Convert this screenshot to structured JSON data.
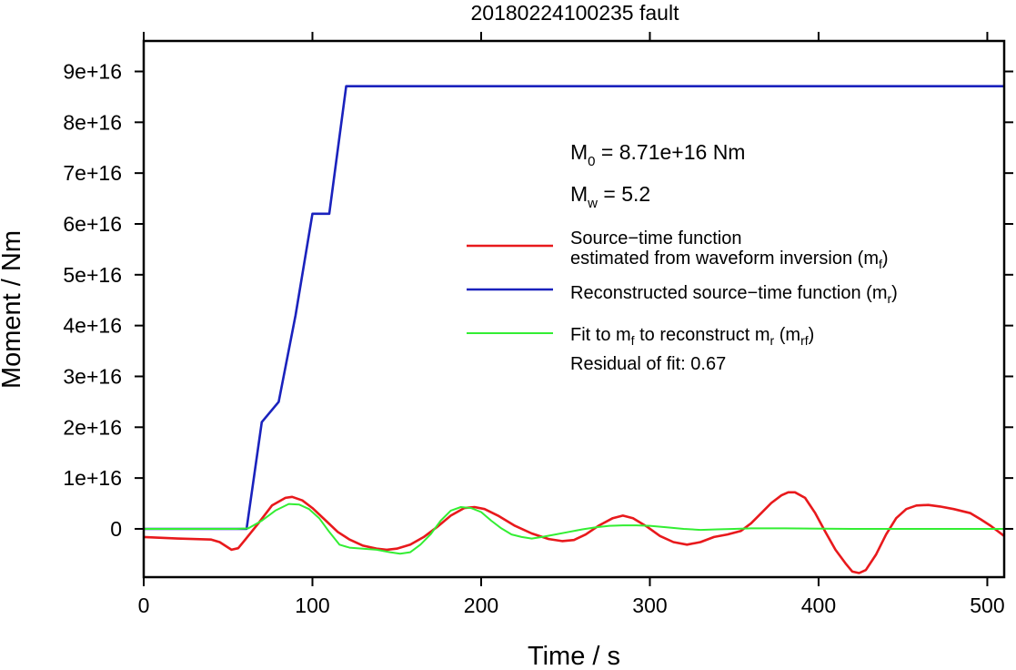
{
  "chart_data": {
    "type": "line",
    "title": "20180224100235 fault",
    "xlabel": "Time / s",
    "ylabel": "Moment / Nm",
    "xlim": [
      0,
      510
    ],
    "ylim": [
      -9500000000000000.0,
      9.6e+16
    ],
    "x_ticks": [
      0,
      100,
      200,
      300,
      400,
      500
    ],
    "x_tick_labels": [
      "0",
      "100",
      "200",
      "300",
      "400",
      "500"
    ],
    "y_ticks": [
      0,
      1e+16,
      2e+16,
      3e+16,
      4e+16,
      5e+16,
      6e+16,
      7e+16,
      8e+16,
      9e+16
    ],
    "y_tick_labels": [
      "0",
      "1e+16",
      "2e+16",
      "3e+16",
      "4e+16",
      "5e+16",
      "6e+16",
      "7e+16",
      "8e+16",
      "9e+16"
    ],
    "grid": false,
    "legend_placement": "right",
    "annotations": {
      "m0_sym": "M",
      "m0_sub": "0",
      "m0_value": " = 8.71e+16 Nm",
      "mw_sym": "M",
      "mw_sub": "w",
      "mw_value": " = 5.2",
      "residual": "Residual of fit: 0.67"
    },
    "legend": [
      {
        "color": "#e8191c",
        "lines": [
          "Source−time function",
          {
            "pre": "estimated from waveform inversion (m",
            "sub": "f",
            "post": ")"
          }
        ]
      },
      {
        "color": "#1a22bd",
        "lines": [
          {
            "pre": "Reconstructed source−time function (m",
            "sub": "r",
            "post": ")"
          }
        ]
      },
      {
        "color": "#33ee33",
        "lines": [
          {
            "pre": "Fit to m",
            "sub": "f",
            "mid": " to reconstruct m",
            "sub2": "r",
            "mid2": " (m",
            "sub3": "rf",
            "post": ")"
          }
        ]
      }
    ],
    "series": [
      {
        "name": "Source−time function estimated from waveform inversion (mf)",
        "color": "#e8191c",
        "x": [
          0,
          20,
          40,
          45,
          52,
          56,
          60,
          68,
          76,
          84,
          88,
          94,
          100,
          108,
          115,
          122,
          130,
          138,
          144,
          150,
          158,
          166,
          174,
          182,
          190,
          196,
          202,
          210,
          220,
          230,
          240,
          248,
          255,
          262,
          270,
          278,
          284,
          290,
          298,
          306,
          314,
          322,
          330,
          338,
          346,
          354,
          360,
          366,
          372,
          378,
          382,
          386,
          392,
          398,
          404,
          410,
          416,
          420,
          424,
          428,
          434,
          440,
          446,
          452,
          458,
          465,
          472,
          480,
          490,
          496,
          502,
          510
        ],
        "y": [
          -1600000000000000.0,
          -1900000000000000.0,
          -2100000000000000.0,
          -2600000000000000.0,
          -4100000000000000.0,
          -3800000000000000.0,
          -2200000000000000.0,
          1100000000000000.0,
          4600000000000000.0,
          6100000000000000.0,
          6300000000000000.0,
          5600000000000000.0,
          4100000000000000.0,
          1600000000000000.0,
          -600000000000000.0,
          -2100000000000000.0,
          -3300000000000000.0,
          -3900000000000000.0,
          -4100000000000000.0,
          -3900000000000000.0,
          -3100000000000000.0,
          -1600000000000000.0,
          400000000000000.0,
          2600000000000000.0,
          4100000000000000.0,
          4300000000000000.0,
          3900000000000000.0,
          2600000000000000.0,
          600000000000000.0,
          -900000000000000.0,
          -2000000000000000.0,
          -2400000000000000.0,
          -2200000000000000.0,
          -1100000000000000.0,
          700000000000000.0,
          2100000000000000.0,
          2600000000000000.0,
          2100000000000000.0,
          500000000000000.0,
          -1400000000000000.0,
          -2600000000000000.0,
          -3100000000000000.0,
          -2600000000000000.0,
          -1600000000000000.0,
          -1100000000000000.0,
          -400000000000000.0,
          1100000000000000.0,
          3100000000000000.0,
          5100000000000000.0,
          6600000000000000.0,
          7200000000000000.0,
          7200000000000000.0,
          6100000000000000.0,
          3100000000000000.0,
          -600000000000000.0,
          -4100000000000000.0,
          -6800000000000000.0,
          -8400000000000000.0,
          -8700000000000000.0,
          -8100000000000000.0,
          -5100000000000000.0,
          -1100000000000000.0,
          2100000000000000.0,
          3900000000000000.0,
          4600000000000000.0,
          4700000000000000.0,
          4400000000000000.0,
          3900000000000000.0,
          3100000000000000.0,
          1900000000000000.0,
          600000000000000.0,
          -1400000000000000.0
        ]
      },
      {
        "name": "Reconstructed source−time function (mr)",
        "color": "#1a22bd",
        "x": [
          0,
          61,
          70,
          80,
          90,
          100,
          110,
          120,
          510
        ],
        "y": [
          0,
          0,
          2.1e+16,
          2.5e+16,
          4.2e+16,
          6.2e+16,
          6.2e+16,
          8.71e+16,
          8.71e+16
        ]
      },
      {
        "name": "Fit to mf to reconstruct mr (mrf)",
        "color": "#33ee33",
        "x": [
          0,
          55,
          62,
          70,
          78,
          86,
          92,
          98,
          104,
          110,
          116,
          122,
          130,
          138,
          146,
          152,
          158,
          164,
          170,
          176,
          182,
          188,
          194,
          200,
          206,
          212,
          218,
          224,
          230,
          236,
          244,
          252,
          260,
          268,
          276,
          284,
          292,
          300,
          310,
          320,
          330,
          340,
          350,
          360,
          380,
          420,
          460,
          510
        ],
        "y": [
          0,
          0,
          100000000000000.0,
          1600000000000000.0,
          3600000000000000.0,
          4900000000000000.0,
          4800000000000000.0,
          3900000000000000.0,
          2100000000000000.0,
          -600000000000000.0,
          -3100000000000000.0,
          -3700000000000000.0,
          -3900000000000000.0,
          -4100000000000000.0,
          -4600000000000000.0,
          -4900000000000000.0,
          -4600000000000000.0,
          -3100000000000000.0,
          -1100000000000000.0,
          1600000000000000.0,
          3600000000000000.0,
          4300000000000000.0,
          4100000000000000.0,
          3300000000000000.0,
          1600000000000000.0,
          100000000000000.0,
          -1100000000000000.0,
          -1600000000000000.0,
          -1900000000000000.0,
          -1600000000000000.0,
          -1100000000000000.0,
          -600000000000000.0,
          -100000000000000.0,
          300000000000000.0,
          600000000000000.0,
          700000000000000.0,
          700000000000000.0,
          600000000000000.0,
          300000000000000.0,
          0,
          -200000000000000.0,
          -100000000000000.0,
          0,
          100000000000000.0,
          100000000000000.0,
          0,
          0,
          0
        ]
      }
    ]
  }
}
